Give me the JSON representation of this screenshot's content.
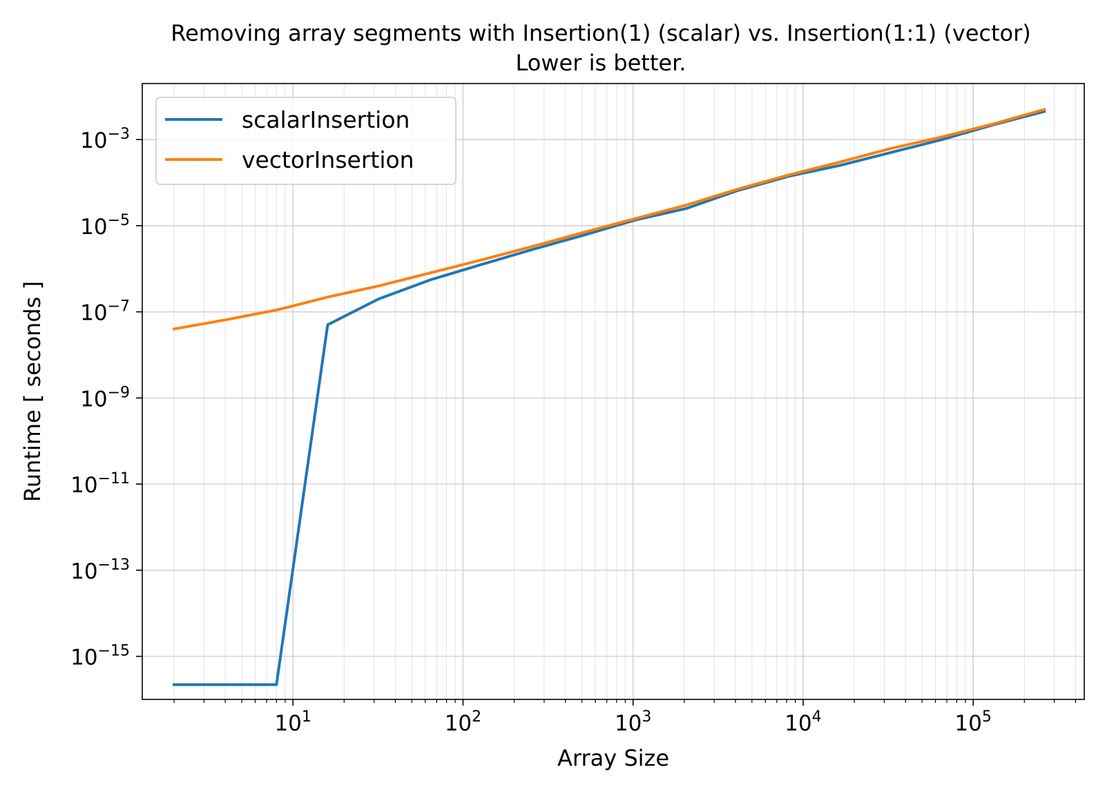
{
  "chart_data": {
    "type": "line",
    "title": "Removing array segments with Insertion(1) (scalar) vs. Insertion(1:1) (vector)",
    "subtitle": "Lower is better.",
    "xlabel": "Array Size",
    "ylabel": "Runtime [ seconds ]",
    "xscale": "log",
    "yscale": "log",
    "xlim": [
      1.3,
      450000
    ],
    "ylim": [
      1e-16,
      0.02
    ],
    "grid": true,
    "legend_position": "top-left",
    "x_tick_labels": [
      {
        "base": "10",
        "exp": "1",
        "value": 10
      },
      {
        "base": "10",
        "exp": "2",
        "value": 100
      },
      {
        "base": "10",
        "exp": "3",
        "value": 1000
      },
      {
        "base": "10",
        "exp": "4",
        "value": 10000
      },
      {
        "base": "10",
        "exp": "5",
        "value": 100000
      }
    ],
    "y_tick_labels": [
      {
        "base": "10",
        "exp": "−3",
        "value": 0.001
      },
      {
        "base": "10",
        "exp": "−5",
        "value": 1e-05
      },
      {
        "base": "10",
        "exp": "−7",
        "value": 1e-07
      },
      {
        "base": "10",
        "exp": "−9",
        "value": 1e-09
      },
      {
        "base": "10",
        "exp": "−11",
        "value": 1e-11
      },
      {
        "base": "10",
        "exp": "−13",
        "value": 1e-13
      },
      {
        "base": "10",
        "exp": "−15",
        "value": 1e-15
      }
    ],
    "series": [
      {
        "name": "scalarInsertion",
        "color": "#1f77b4",
        "x": [
          2,
          4,
          8,
          16,
          32,
          64,
          128,
          256,
          512,
          1024,
          2048,
          4096,
          8192,
          16384,
          32768,
          65536,
          131072,
          262144
        ],
        "y": [
          2.2e-16,
          2.2e-16,
          2.2e-16,
          5e-08,
          2e-07,
          5.5e-07,
          1.25e-06,
          2.8e-06,
          6e-06,
          1.35e-05,
          2.5e-05,
          6.5e-05,
          0.00014,
          0.00025,
          0.0005,
          0.001,
          0.0022,
          0.0045
        ]
      },
      {
        "name": "vectorInsertion",
        "color": "#ff7f0e",
        "x": [
          2,
          4,
          8,
          16,
          32,
          64,
          128,
          256,
          512,
          1024,
          2048,
          4096,
          8192,
          16384,
          32768,
          65536,
          131072,
          262144
        ],
        "y": [
          4e-08,
          6.5e-08,
          1.1e-07,
          2.2e-07,
          4e-07,
          8e-07,
          1.6e-06,
          3.3e-06,
          7e-06,
          1.45e-05,
          3e-05,
          7e-05,
          0.00015,
          0.0003,
          0.00062,
          0.00115,
          0.0023,
          0.005
        ]
      }
    ]
  }
}
